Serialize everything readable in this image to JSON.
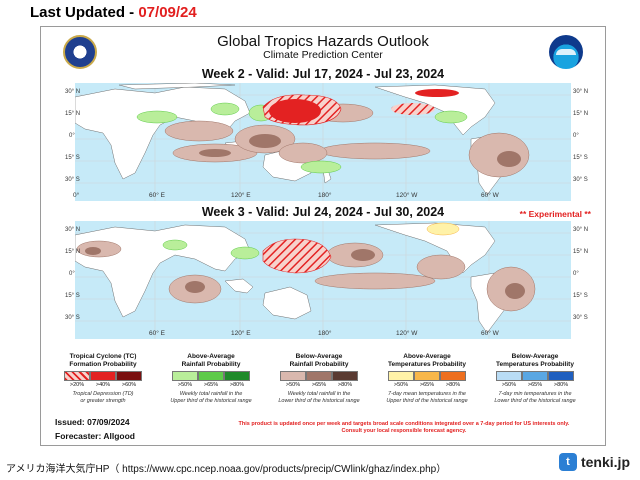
{
  "header": {
    "last_updated_label": "Last Updated - ",
    "last_updated_date": "07/09/24"
  },
  "panel": {
    "title": "Global Tropics Hazards Outlook",
    "subtitle": "Climate Prediction Center",
    "week2_title": "Week 2 - Valid: Jul 17, 2024 - Jul 23, 2024",
    "week3_title": "Week 3 - Valid: Jul 24, 2024 - Jul 30, 2024",
    "experimental": "** Experimental **",
    "lat_labels": [
      "30° N",
      "15° N",
      "0°",
      "15° S",
      "30° S"
    ],
    "lon_labels": [
      "0°",
      "60° E",
      "120° E",
      "180°",
      "120° W",
      "60° W"
    ],
    "issued": "Issued: 07/09/2024",
    "forecaster": "Forecaster: Allgood",
    "disclaimer_line1": "This product is updated once per week and targets broad scale conditions integrated over a 7-day period for US interests only.",
    "disclaimer_line2": "Consult your local responsible forecast agency."
  },
  "legend": [
    {
      "title_line1": "Tropical Cyclone (TC)",
      "title_line2": "Formation Probability",
      "labels": [
        ">20%",
        ">40%",
        ">60%"
      ],
      "colors": [
        "#f3b0a8",
        "#e32222",
        "#7a1010"
      ],
      "hatched_first": true,
      "note_line1": "Tropical Depression (TD)",
      "note_line2": "or greater strength"
    },
    {
      "title_line1": "Above-Average",
      "title_line2": "Rainfall Probability",
      "labels": [
        ">50%",
        ">65%",
        ">80%"
      ],
      "colors": [
        "#b9ee9a",
        "#5ecb49",
        "#1f8a2a"
      ],
      "note_line1": "Weekly total rainfall in the",
      "note_line2": "Upper third of the historical range"
    },
    {
      "title_line1": "Below-Average",
      "title_line2": "Rainfall Probability",
      "labels": [
        ">50%",
        ">65%",
        ">80%"
      ],
      "colors": [
        "#d9b8ae",
        "#a07669",
        "#5a3b32"
      ],
      "note_line1": "Weekly total rainfall in the",
      "note_line2": "Lower third of the historical range"
    },
    {
      "title_line1": "Above-Average",
      "title_line2": "Temperatures Probability",
      "labels": [
        ">50%",
        ">65%",
        ">80%"
      ],
      "colors": [
        "#fff2a8",
        "#f8b74a",
        "#ee6f1f"
      ],
      "note_line1": "7-day mean temperatures in the",
      "note_line2": "Upper third of the historical range"
    },
    {
      "title_line1": "Below-Average",
      "title_line2": "Temperatures Probability",
      "labels": [
        ">50%",
        ">65%",
        ">80%"
      ],
      "colors": [
        "#b9dcf5",
        "#5aa7e3",
        "#1f5fbf"
      ],
      "note_line1": "7-day min temperatures in the",
      "note_line2": "Lower third of the historical range"
    }
  ],
  "footer": {
    "source": "アメリカ海洋大気庁HP（ https://www.cpc.ncep.noaa.gov/products/precip/CWlink/ghaz/index.php）",
    "brand": "tenki.jp",
    "brand_icon": "t"
  }
}
